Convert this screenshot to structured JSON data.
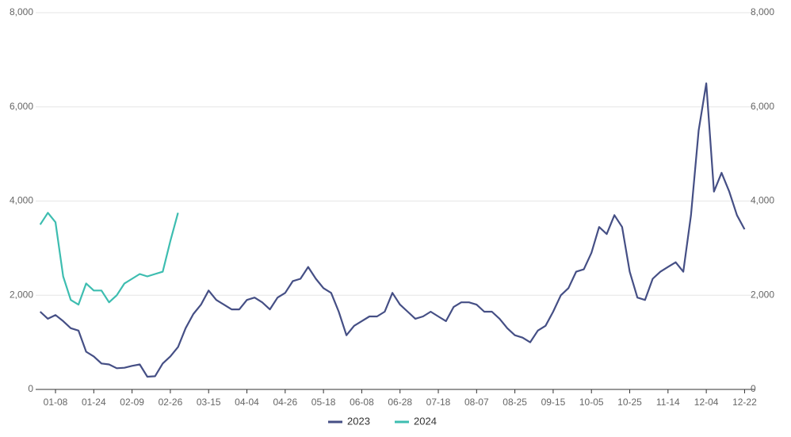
{
  "chart_data": {
    "type": "line",
    "categories": [
      null,
      null,
      "01-08",
      null,
      null,
      null,
      null,
      "01-24",
      null,
      null,
      null,
      null,
      "02-09",
      null,
      null,
      null,
      null,
      "02-26",
      null,
      null,
      null,
      null,
      "03-15",
      null,
      null,
      null,
      null,
      "04-04",
      null,
      null,
      null,
      null,
      "04-26",
      null,
      null,
      null,
      null,
      "05-18",
      null,
      null,
      null,
      null,
      "06-08",
      null,
      null,
      null,
      null,
      "06-28",
      null,
      null,
      null,
      null,
      "07-18",
      null,
      null,
      null,
      null,
      "08-07",
      null,
      null,
      null,
      null,
      "08-25",
      null,
      null,
      null,
      null,
      "09-15",
      null,
      null,
      null,
      null,
      "10-05",
      null,
      null,
      null,
      null,
      "10-25",
      null,
      null,
      null,
      null,
      "11-14",
      null,
      null,
      null,
      null,
      "12-04",
      null,
      null,
      null,
      null,
      "12-22"
    ],
    "series": [
      {
        "name": "2023",
        "color": "#454f85",
        "values": [
          1650,
          1500,
          1580,
          1450,
          1300,
          1250,
          800,
          700,
          550,
          530,
          450,
          460,
          500,
          530,
          270,
          280,
          550,
          700,
          900,
          1300,
          1600,
          1800,
          2100,
          1900,
          1800,
          1700,
          1700,
          1900,
          1950,
          1850,
          1700,
          1950,
          2050,
          2300,
          2350,
          2600,
          2350,
          2150,
          2050,
          1650,
          1150,
          1350,
          1450,
          1550,
          1550,
          1650,
          2050,
          1800,
          1650,
          1500,
          1550,
          1650,
          1550,
          1450,
          1750,
          1850,
          1850,
          1800,
          1650,
          1650,
          1500,
          1300,
          1150,
          1100,
          1000,
          1250,
          1350,
          1650,
          2000,
          2150,
          2500,
          2550,
          2900,
          3450,
          3300,
          3700,
          3450,
          2500,
          1950,
          1900,
          2350,
          2500,
          2600,
          2700,
          2500,
          3700,
          5500,
          6500,
          4200,
          4600,
          4200,
          3700,
          3400
        ]
      },
      {
        "name": "2024",
        "color": "#3dbdb0",
        "values": [
          3500,
          3750,
          3550,
          2400,
          1900,
          1800,
          2250,
          2100,
          2100,
          1850,
          2000,
          2250,
          2350,
          2450,
          2400,
          2450,
          2500,
          3150,
          3750,
          null,
          null,
          null,
          null,
          null,
          null,
          null,
          null,
          null,
          null,
          null,
          null,
          null,
          null,
          null,
          null,
          null,
          null,
          null,
          null,
          null,
          null,
          null,
          null,
          null,
          null,
          null,
          null,
          null,
          null,
          null,
          null,
          null,
          null,
          null,
          null,
          null,
          null,
          null,
          null,
          null,
          null,
          null,
          null,
          null,
          null,
          null,
          null,
          null,
          null,
          null,
          null,
          null,
          null,
          null,
          null,
          null,
          null,
          null,
          null,
          null,
          null,
          null,
          null,
          null,
          null,
          null,
          null,
          null,
          null,
          null,
          null,
          null,
          null
        ]
      }
    ],
    "ylim": [
      0,
      8000
    ],
    "yticks": [
      0,
      {
        "value": 2000,
        "label": "2,000"
      },
      {
        "value": 4000,
        "label": "4,000"
      },
      {
        "value": 6000,
        "label": "6,000"
      },
      {
        "value": 8000,
        "label": "8,000"
      }
    ],
    "y2lim": [
      0,
      8000
    ],
    "y2ticks": [
      0,
      {
        "value": 2000,
        "label": "2,000"
      },
      {
        "value": 4000,
        "label": "4,000"
      },
      {
        "value": 6000,
        "label": "6,000"
      },
      {
        "value": 8000,
        "label": "8,000"
      }
    ],
    "grid": true
  }
}
